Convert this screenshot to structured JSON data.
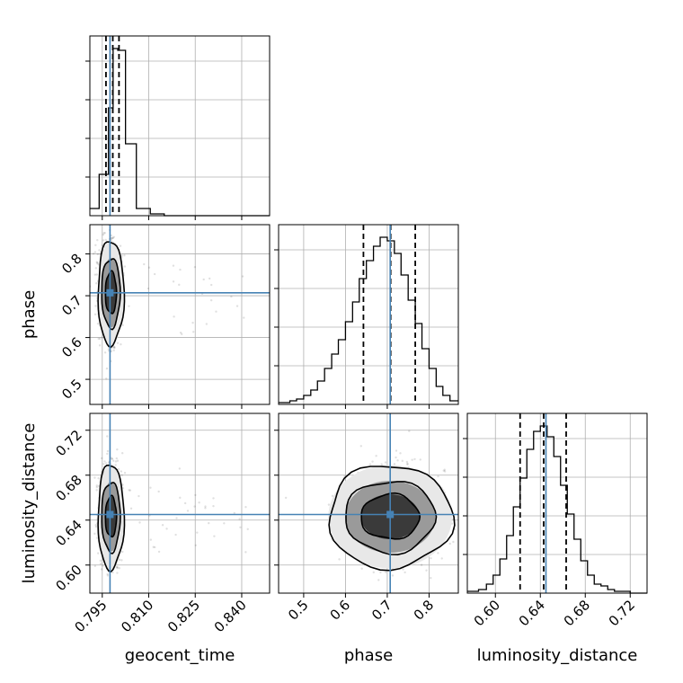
{
  "chart_data": {
    "type": "corner",
    "parameters": [
      "geocent_time",
      "phase",
      "luminosity_distance"
    ],
    "axis_labels": {
      "geocent_time": "geocent_time",
      "phase": "phase",
      "luminosity_distance": "luminosity_distance"
    },
    "ranges": {
      "geocent_time": [
        0.791,
        0.849
      ],
      "phase": [
        0.44,
        0.87
      ],
      "luminosity_distance": [
        0.575,
        0.735
      ]
    },
    "ticks": {
      "geocent_time": [
        "0.795",
        "0.810",
        "0.825",
        "0.840"
      ],
      "phase": [
        "0.5",
        "0.6",
        "0.7",
        "0.8"
      ],
      "luminosity_distance": [
        "0.60",
        "0.64",
        "0.68",
        "0.72"
      ]
    },
    "truths": {
      "geocent_time": 0.7975,
      "phase": 0.707,
      "luminosity_distance": 0.645
    },
    "quantiles": {
      "geocent_time": [
        0.7962,
        0.7984,
        0.8004
      ],
      "phase": [
        0.643,
        0.708,
        0.767
      ],
      "luminosity_distance": [
        0.622,
        0.643,
        0.663
      ]
    },
    "histograms": {
      "geocent_time": {
        "bin_edges": [
          0.791,
          0.794,
          0.797,
          0.7985,
          0.8,
          0.8025,
          0.806,
          0.8105,
          0.815,
          0.849
        ],
        "counts": [
          0.04,
          0.23,
          0.6,
          0.93,
          0.92,
          0.4,
          0.04,
          0.01,
          0.0
        ]
      },
      "phase": {
        "bin_edges": [
          0.44,
          0.467,
          0.483,
          0.5,
          0.517,
          0.533,
          0.55,
          0.567,
          0.583,
          0.6,
          0.617,
          0.633,
          0.65,
          0.667,
          0.683,
          0.7,
          0.717,
          0.733,
          0.75,
          0.767,
          0.783,
          0.8,
          0.817,
          0.833,
          0.85,
          0.87
        ],
        "counts": [
          0.01,
          0.02,
          0.03,
          0.05,
          0.08,
          0.13,
          0.2,
          0.28,
          0.36,
          0.46,
          0.57,
          0.7,
          0.8,
          0.88,
          0.93,
          0.91,
          0.84,
          0.72,
          0.58,
          0.45,
          0.31,
          0.2,
          0.1,
          0.05,
          0.02
        ]
      },
      "luminosity_distance": {
        "bin_edges": [
          0.575,
          0.585,
          0.592,
          0.598,
          0.604,
          0.61,
          0.616,
          0.622,
          0.628,
          0.634,
          0.64,
          0.646,
          0.652,
          0.658,
          0.664,
          0.67,
          0.676,
          0.682,
          0.688,
          0.694,
          0.7,
          0.706,
          0.712,
          0.72,
          0.735
        ],
        "counts": [
          0.01,
          0.02,
          0.05,
          0.1,
          0.19,
          0.32,
          0.48,
          0.64,
          0.8,
          0.9,
          0.93,
          0.87,
          0.76,
          0.6,
          0.44,
          0.3,
          0.18,
          0.1,
          0.05,
          0.04,
          0.02,
          0.01,
          0.01,
          0.0
        ]
      }
    },
    "contours": {
      "phase_vs_geocent_time": [
        {
          "center": [
            0.7978,
            0.707
          ],
          "half_width": [
            0.0042,
            0.125
          ]
        },
        {
          "center": [
            0.7978,
            0.707
          ],
          "half_width": [
            0.003,
            0.083
          ]
        },
        {
          "center": [
            0.7978,
            0.707
          ],
          "half_width": [
            0.0018,
            0.05
          ]
        }
      ],
      "luminosity_distance_vs_geocent_time": [
        {
          "center": [
            0.7978,
            0.643
          ],
          "half_width": [
            0.0042,
            0.047
          ]
        },
        {
          "center": [
            0.7978,
            0.643
          ],
          "half_width": [
            0.003,
            0.031
          ]
        },
        {
          "center": [
            0.7978,
            0.643
          ],
          "half_width": [
            0.0018,
            0.018
          ]
        }
      ],
      "luminosity_distance_vs_phase": [
        {
          "center": [
            0.707,
            0.643
          ],
          "half_width": [
            0.148,
            0.046
          ]
        },
        {
          "center": [
            0.707,
            0.643
          ],
          "half_width": [
            0.108,
            0.032
          ]
        },
        {
          "center": [
            0.707,
            0.643
          ],
          "half_width": [
            0.07,
            0.02
          ]
        }
      ]
    },
    "grid": true
  }
}
